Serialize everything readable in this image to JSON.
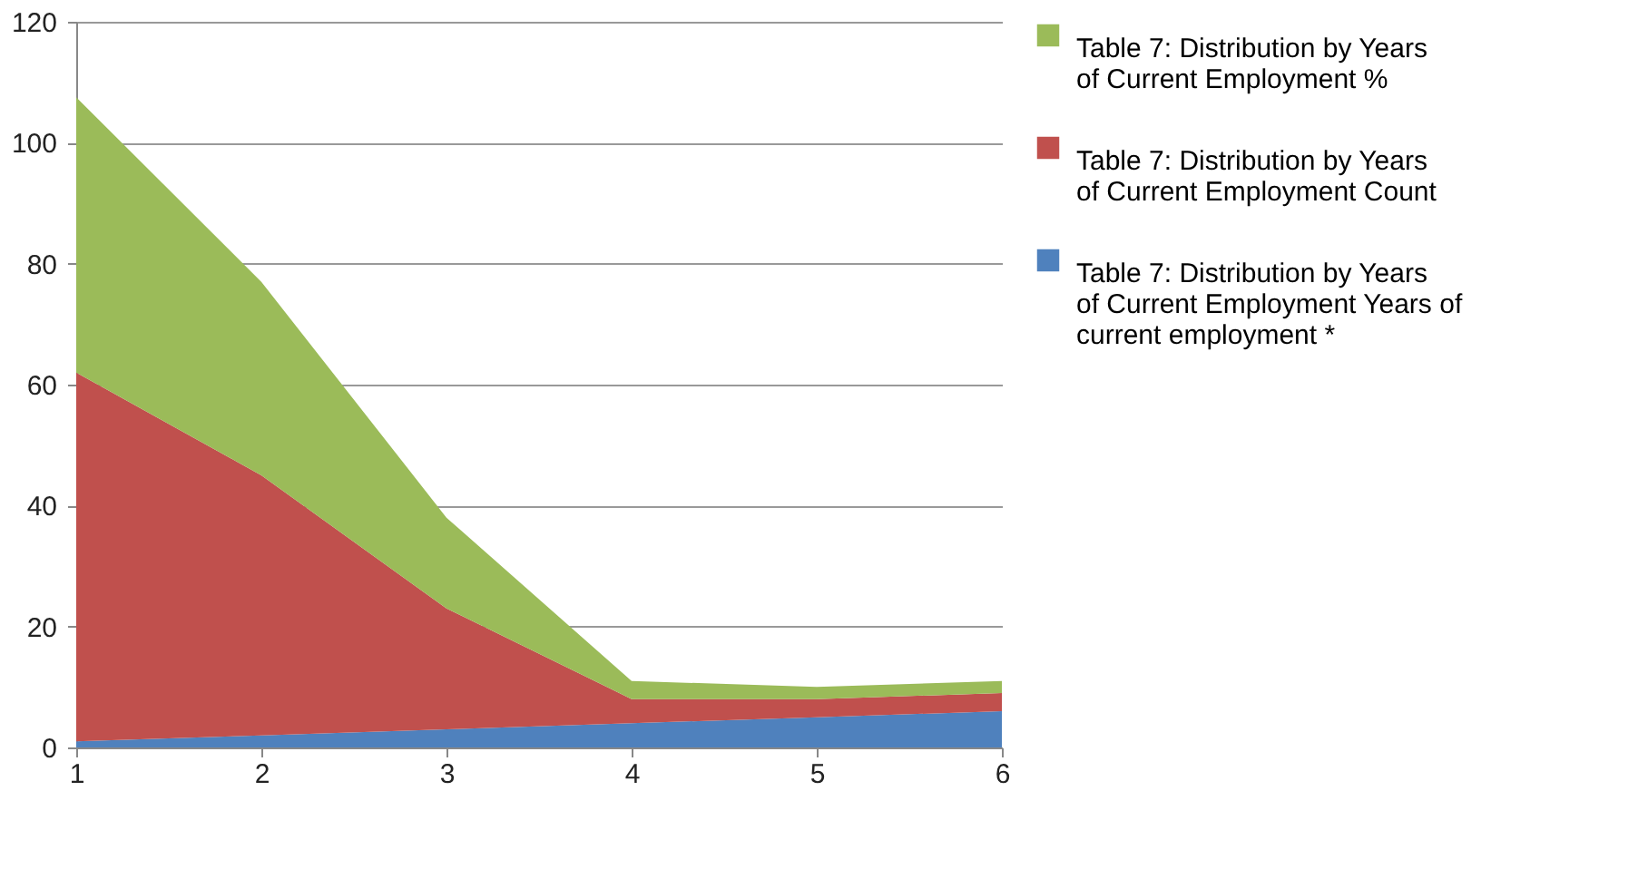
{
  "chart_data": {
    "type": "area",
    "stacked": true,
    "x": [
      1,
      2,
      3,
      4,
      5,
      6
    ],
    "xlim": [
      1,
      6
    ],
    "xticks": [
      1,
      2,
      3,
      4,
      5,
      6
    ],
    "ylim": [
      0,
      120
    ],
    "yticks": [
      0,
      20,
      40,
      60,
      80,
      100,
      120
    ],
    "grid": "y",
    "legend": "right",
    "series": [
      {
        "name": "Table 7: Distribution by Years of Current Employment Years of current employment *",
        "color": "#4f81bd",
        "values": [
          1,
          2,
          3,
          4,
          5,
          6
        ]
      },
      {
        "name": "Table 7: Distribution by Years of Current Employment Count",
        "color": "#c0504d",
        "values": [
          61,
          43,
          20,
          4,
          3,
          3
        ]
      },
      {
        "name": "Table 7: Distribution by Years of Current Employment %",
        "color": "#9bbb59",
        "values": [
          45.5,
          32,
          15,
          3,
          2,
          2
        ]
      }
    ]
  }
}
